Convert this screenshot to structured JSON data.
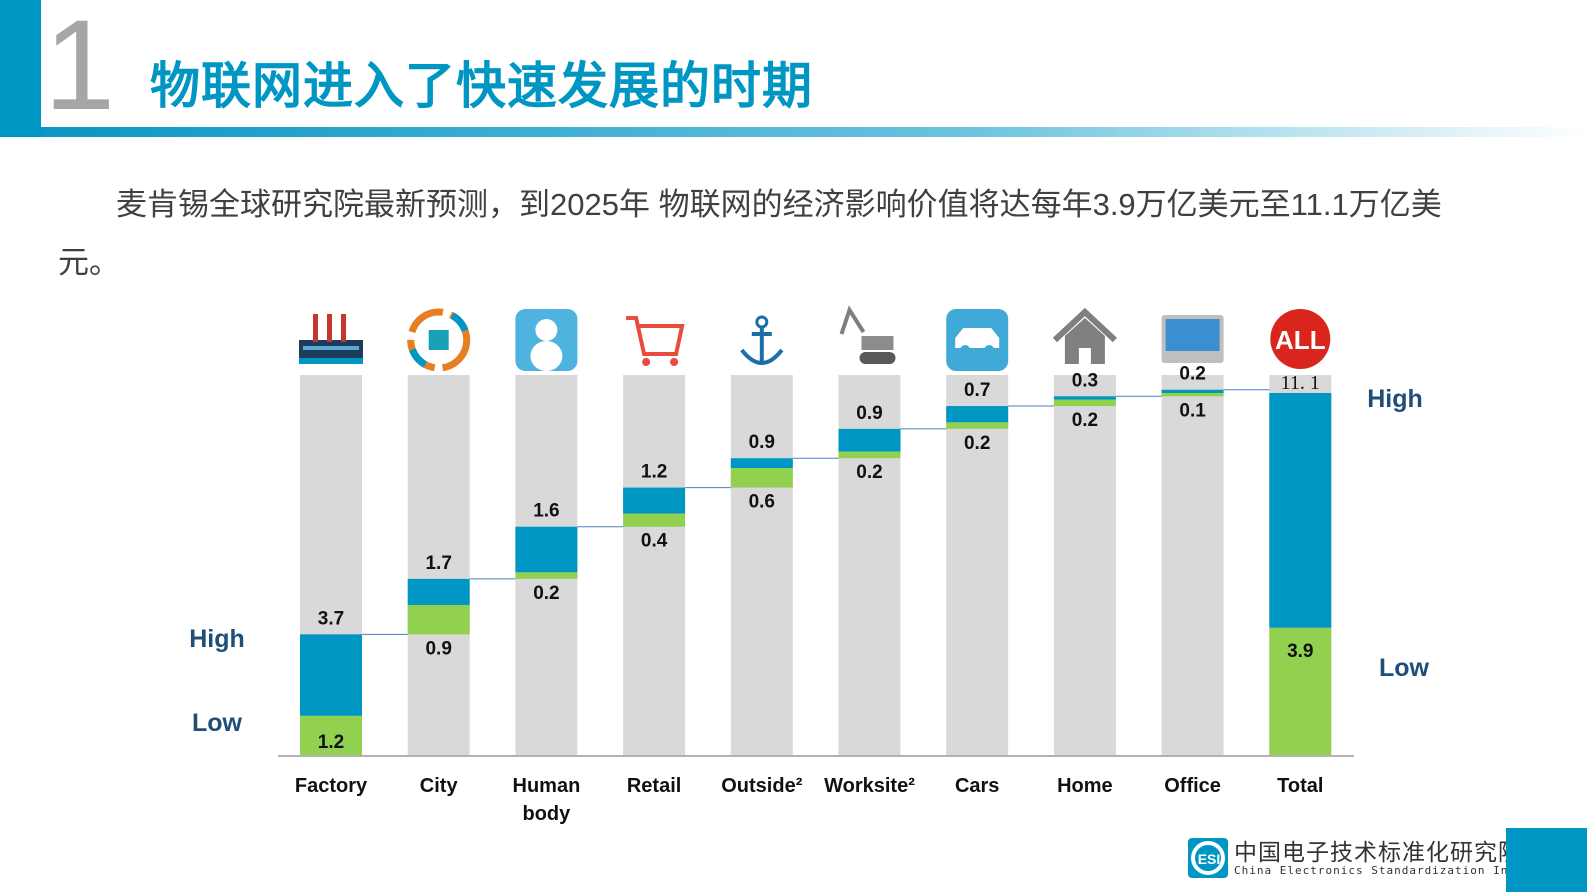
{
  "header": {
    "section_number": "1",
    "title": "物联网进入了快速发展的时期"
  },
  "description": "麦肯锡全球研究院最新预测，到2025年 物联网的经济影响价值将达每年3.9万亿美元至11.1万亿美元。",
  "colors": {
    "accent": "#0096c3",
    "high": "#0096c3",
    "low": "#92d050",
    "column_bg": "#d9d9d9",
    "label": "#1f4e79"
  },
  "chart_data": {
    "type": "bar",
    "subtype": "waterfall",
    "categories": [
      "Factory",
      "City",
      "Human body",
      "Retail",
      "Outside²",
      "Worksite²",
      "Cars",
      "Home",
      "Office",
      "Total"
    ],
    "icons": [
      "factory-icon",
      "city-icon",
      "person-icon",
      "shopping-cart-icon",
      "anchor-icon",
      "excavator-icon",
      "car-icon",
      "home-icon",
      "monitor-icon",
      "all-icon"
    ],
    "series": [
      {
        "name": "Low",
        "values": [
          1.2,
          0.9,
          0.2,
          0.4,
          0.6,
          0.2,
          0.2,
          0.2,
          0.1,
          3.9
        ],
        "labels": [
          "1.2",
          "0.9",
          "0.2",
          "0.4",
          "0.6",
          "0.2",
          "0.2",
          "0.2",
          "0.1",
          "3.9"
        ]
      },
      {
        "name": "High",
        "values": [
          3.7,
          1.7,
          1.6,
          1.2,
          0.9,
          0.9,
          0.7,
          0.3,
          0.2,
          11.1
        ],
        "labels": [
          "3.7",
          "1.7",
          "1.6",
          "1.2",
          "0.9",
          "0.9",
          "0.7",
          "0.3",
          "0.2",
          "11. 1"
        ]
      }
    ],
    "left_legend": {
      "high": "High",
      "low": "Low"
    },
    "right_legend": {
      "high": "High",
      "low": "Low"
    },
    "ylim": [
      0,
      11.7
    ]
  },
  "footer": {
    "org_cn": "中国电子技术标准化研究院",
    "org_en": "China Electronics Standardization Institute",
    "logo_text": "ESI"
  }
}
